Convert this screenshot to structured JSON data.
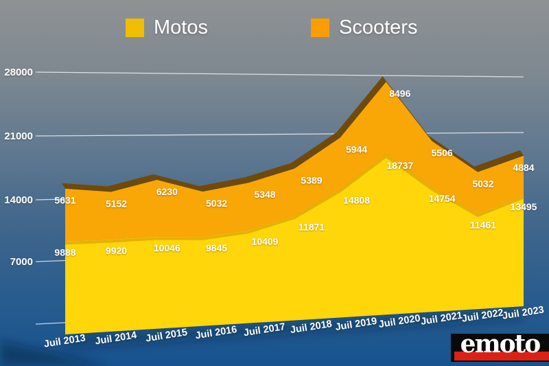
{
  "legend": [
    {
      "label": "Motos",
      "color": "#F0BE00"
    },
    {
      "label": "Scooters",
      "color": "#FA9E00"
    }
  ],
  "chart_data": {
    "type": "area",
    "stacked": true,
    "style": "3d",
    "categories": [
      "Juil 2013",
      "Juil 2014",
      "Juil 2015",
      "Juil 2016",
      "Juil 2017",
      "Juil 2018",
      "Juil 2019",
      "Juil 2020",
      "Juil 2021",
      "Juil 2022",
      "Juil 2023"
    ],
    "series": [
      {
        "name": "Motos",
        "color": "#FFD60A",
        "values": [
          9888,
          9920,
          10046,
          9845,
          10409,
          11871,
          14808,
          18737,
          14754,
          11461,
          13495
        ]
      },
      {
        "name": "Scooters",
        "color": "#F9A607",
        "values": [
          5631,
          5152,
          6230,
          5032,
          5348,
          5389,
          5944,
          8496,
          5506,
          5032,
          4884
        ]
      }
    ],
    "ylim": [
      0,
      28000
    ],
    "yticks": [
      0,
      7000,
      14000,
      21000,
      28000
    ],
    "ytick_labels": [
      "",
      "7000",
      "14000",
      "21000",
      "28000"
    ],
    "xlabel": "",
    "ylabel": "",
    "grid": true,
    "grid_color": "rgba(255,255,255,0.75)",
    "label_color": "#FFFFFF",
    "depth_color": "#6E4A0E",
    "seam_color": "rgba(200,130,0,0.45)",
    "legend_position": "top"
  },
  "background": {
    "top": "#8F9295",
    "middle": "#40668B",
    "bottom": "#16538F"
  },
  "logo": {
    "text": "emoto",
    "bg": "#0A0A0A",
    "stripe": "#DC2114",
    "text_color": "#FFFFFF"
  }
}
